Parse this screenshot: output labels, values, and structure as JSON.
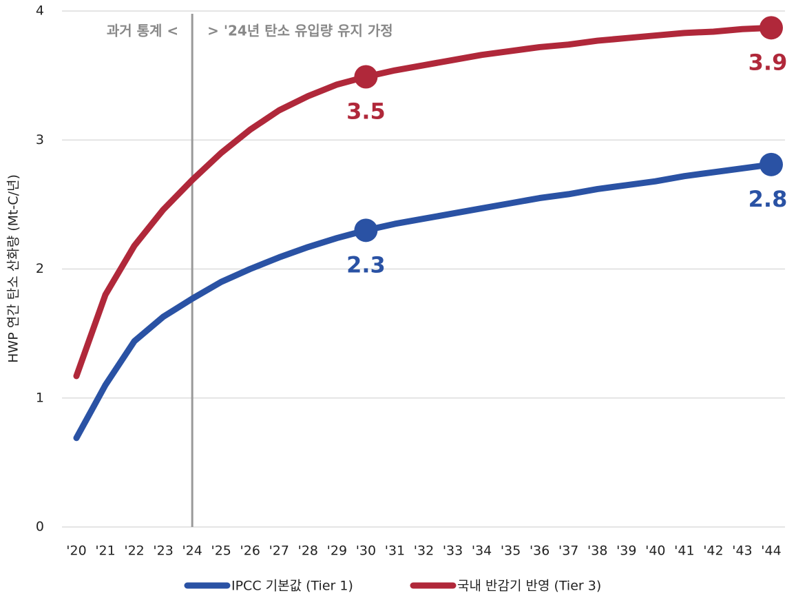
{
  "chart_data": {
    "type": "line",
    "y_label": "HWP 연간 탄소 산화량 (Mt-C/년)",
    "categories": [
      "'20",
      "'21",
      "'22",
      "'23",
      "'24",
      "'25",
      "'26",
      "'27",
      "'28",
      "'29",
      "'30",
      "'31",
      "'32",
      "'33",
      "'34",
      "'35",
      "'36",
      "'37",
      "'38",
      "'39",
      "'40",
      "'41",
      "'42",
      "'43",
      "'44"
    ],
    "series": [
      {
        "name": "IPCC 기본값 (Tier 1)",
        "color": "#2a52a4",
        "values": [
          0.69,
          1.1,
          1.44,
          1.63,
          1.77,
          1.9,
          2.0,
          2.09,
          2.17,
          2.24,
          2.3,
          2.35,
          2.39,
          2.43,
          2.47,
          2.51,
          2.55,
          2.58,
          2.62,
          2.65,
          2.68,
          2.72,
          2.75,
          2.78,
          2.81
        ],
        "value_labels": [
          null,
          null,
          null,
          null,
          null,
          null,
          null,
          null,
          null,
          null,
          "2.3",
          null,
          null,
          null,
          null,
          null,
          null,
          null,
          null,
          null,
          null,
          null,
          null,
          null,
          "2.8"
        ],
        "label_side": "below"
      },
      {
        "name": "국내 반감기 반영 (Tier 3)",
        "color": "#b0283a",
        "values": [
          1.17,
          1.8,
          2.18,
          2.46,
          2.69,
          2.9,
          3.08,
          3.23,
          3.34,
          3.43,
          3.49,
          3.54,
          3.58,
          3.62,
          3.66,
          3.69,
          3.72,
          3.74,
          3.77,
          3.79,
          3.81,
          3.83,
          3.84,
          3.86,
          3.87
        ],
        "value_labels": [
          null,
          null,
          null,
          null,
          null,
          null,
          null,
          null,
          null,
          null,
          "3.5",
          null,
          null,
          null,
          null,
          null,
          null,
          null,
          null,
          null,
          null,
          null,
          null,
          null,
          "3.9"
        ],
        "label_side": "below"
      }
    ],
    "ylim": [
      0,
      4
    ],
    "yticks": [
      0,
      1,
      2,
      3,
      4
    ],
    "grid": true,
    "divider": {
      "category": 4,
      "left_text": "과거 통계 <",
      "right_text": "> '24년 탄소 유입량 유지 가정"
    },
    "legend": "bottom"
  }
}
